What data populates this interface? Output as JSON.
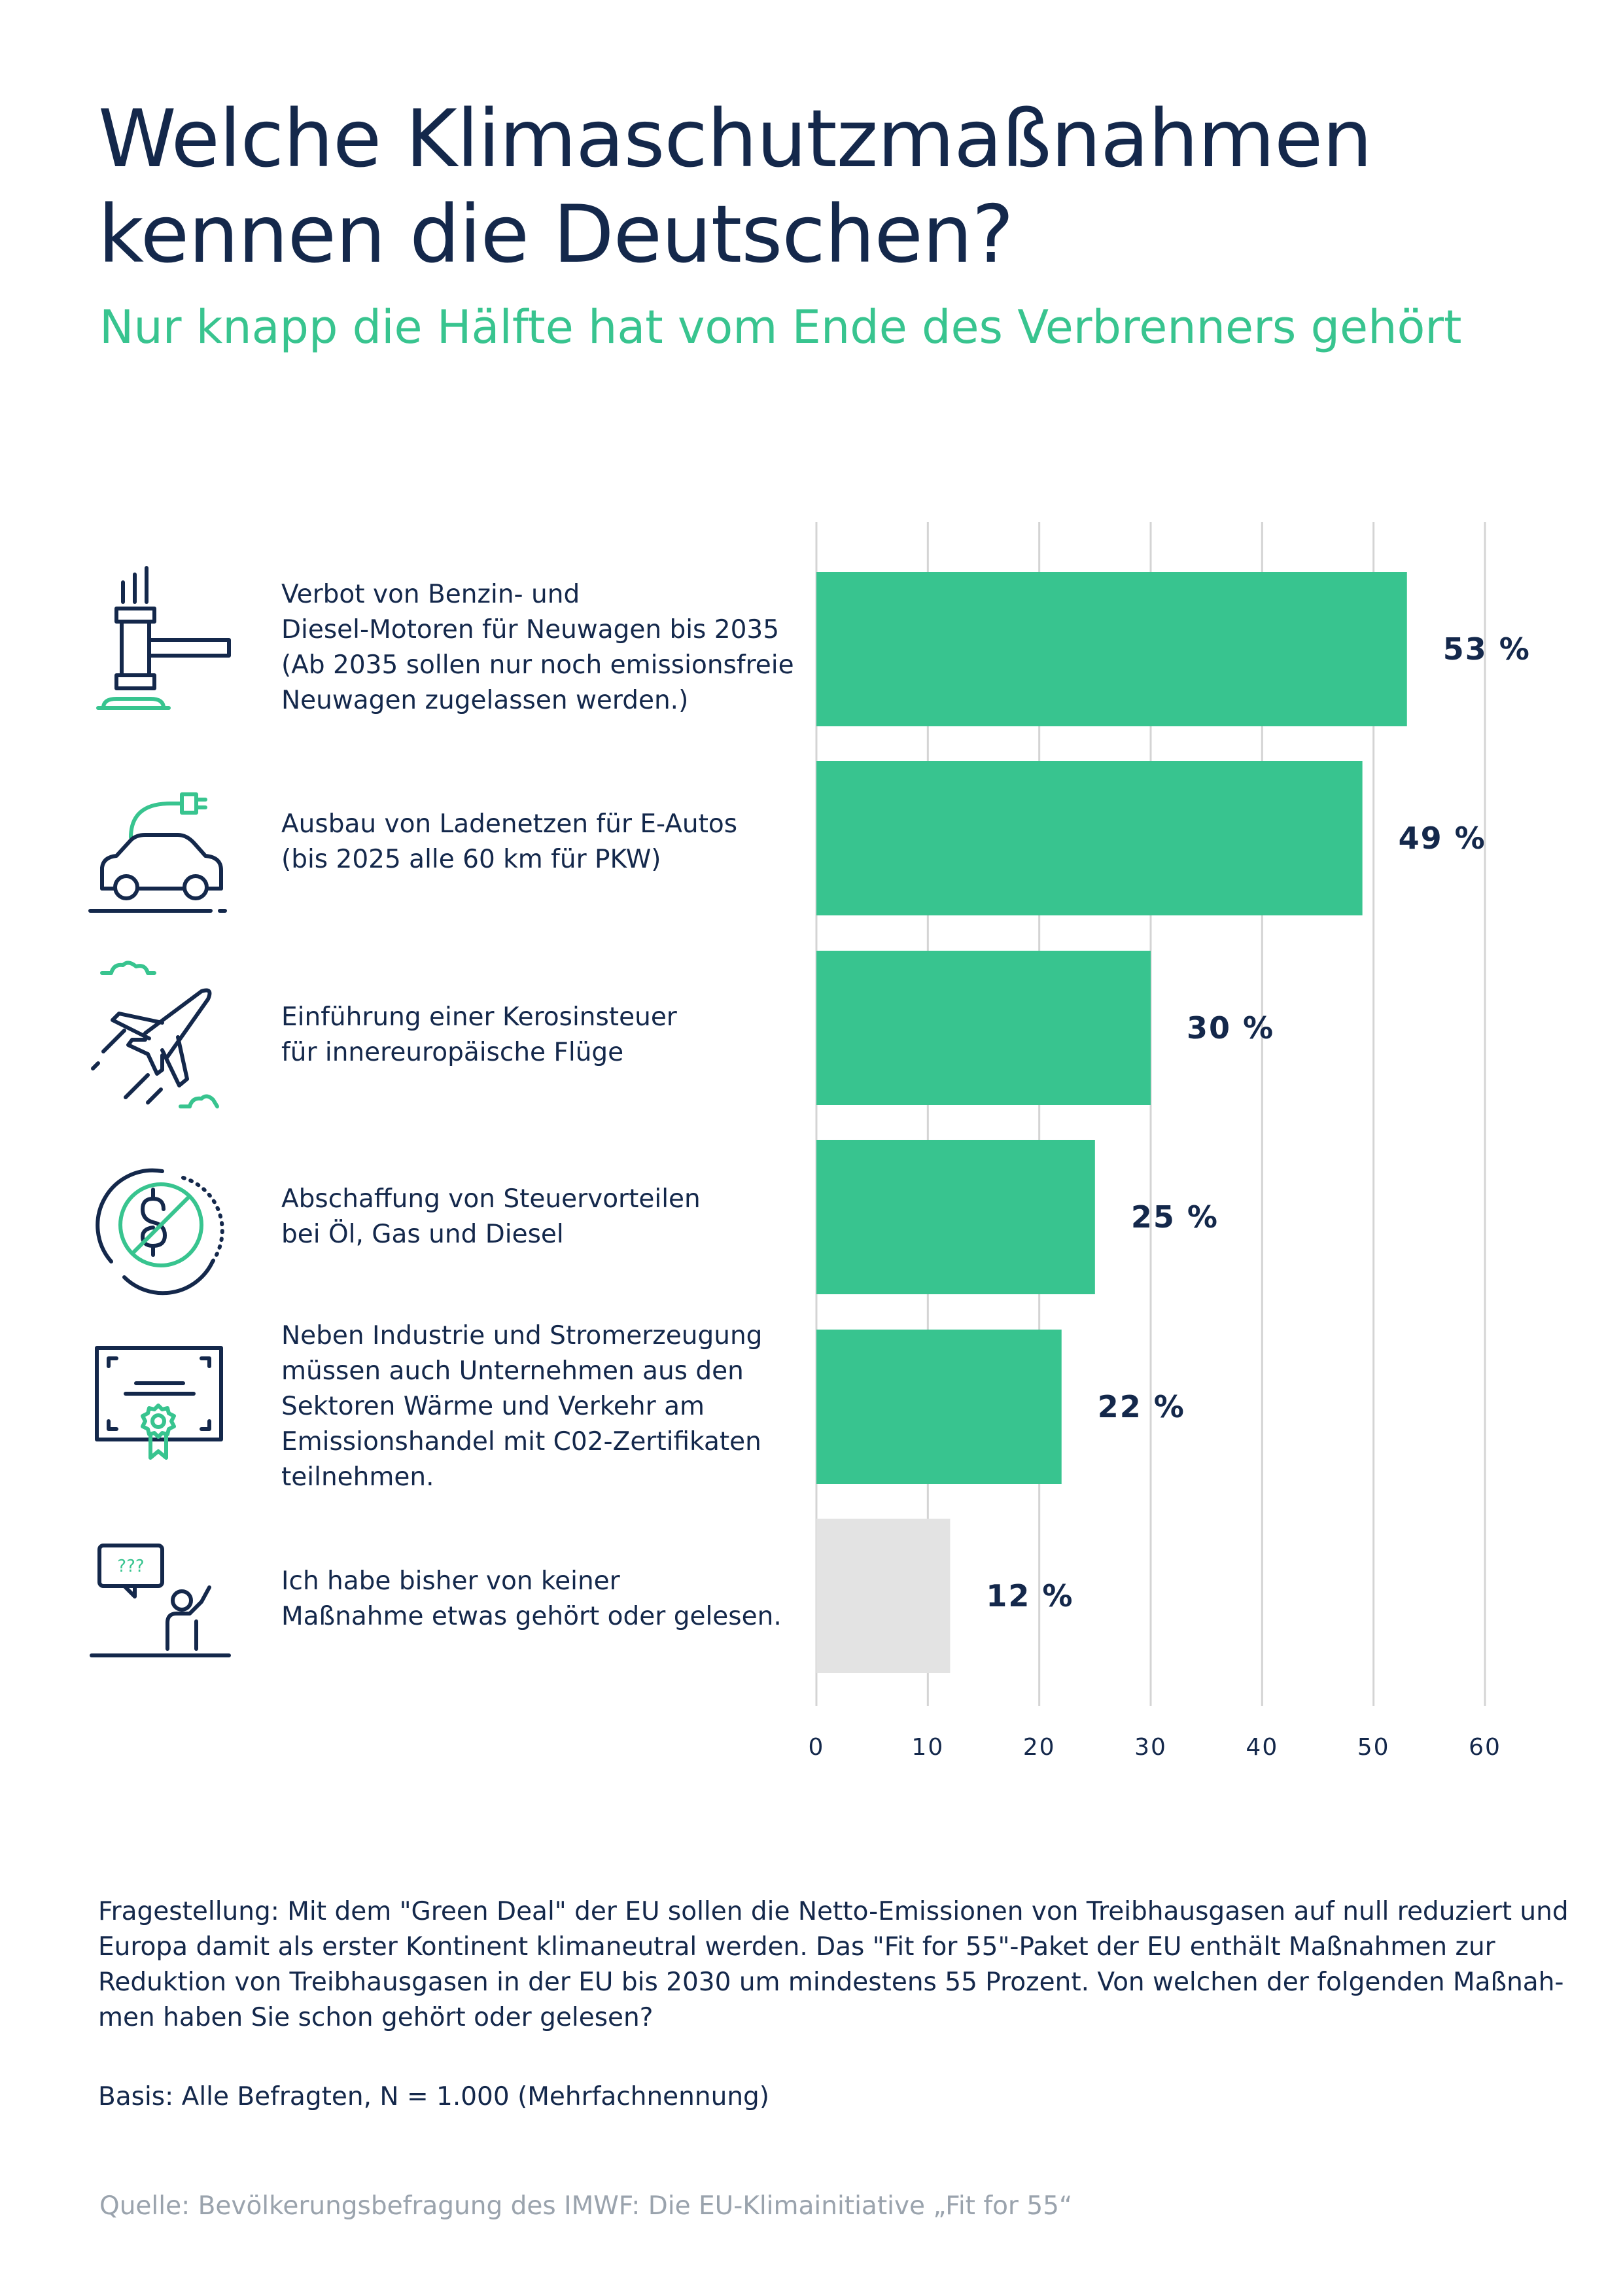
{
  "header": {
    "title_lines": [
      "Welche Klimaschutzmaßnahmen",
      "kennen die Deutschen?"
    ],
    "subtitle": "Nur knapp die Hälfte hat vom Ende des Verbrenners gehört"
  },
  "colors": {
    "accent": "#38c48f",
    "text": "#14284b",
    "neutral_bar": "#e3e3e3",
    "grid": "#d4d4d4",
    "source": "#9aa3ad"
  },
  "items": [
    {
      "icon": "gavel-icon",
      "label_lines": [
        "Verbot von Benzin- und",
        "Diesel-Motoren für Neuwagen bis 2035",
        "(Ab 2035 sollen nur noch emissionsfreie",
        "Neuwagen zugelassen werden.)"
      ]
    },
    {
      "icon": "ev-car-charging-icon",
      "label_lines": [
        "Ausbau von Ladenetzen für E-Autos",
        "(bis 2025 alle 60 km für PKW)"
      ]
    },
    {
      "icon": "airplane-icon",
      "label_lines": [
        "Einführung einer Kerosinsteuer",
        "für innereuropäische Flüge"
      ]
    },
    {
      "icon": "no-tax-benefit-icon",
      "label_lines": [
        "Abschaffung von Steuervorteilen",
        "bei Öl, Gas und Diesel"
      ]
    },
    {
      "icon": "certificate-icon",
      "label_lines": [
        "Neben Industrie und Stromerzeugung",
        "müssen auch Unternehmen aus den",
        "Sektoren Wärme und Verkehr am",
        "Emissionshandel mit C02-Zertifikaten",
        "teilnehmen."
      ]
    },
    {
      "icon": "question-person-icon",
      "label_lines": [
        "Ich habe bisher von keiner",
        "Maßnahme etwas gehört oder gelesen."
      ]
    }
  ],
  "chart_data": {
    "type": "bar",
    "orientation": "horizontal",
    "categories": [
      "Verbot von Benzin- und Diesel-Motoren für Neuwagen bis 2035 (Ab 2035 sollen nur noch emissionsfreie Neuwagen zugelassen werden.)",
      "Ausbau von Ladenetzen für E-Autos (bis 2025 alle 60 km für PKW)",
      "Einführung einer Kerosinsteuer für innereuropäische Flüge",
      "Abschaffung von Steuervorteilen bei Öl, Gas und Diesel",
      "Neben Industrie und Stromerzeugung müssen auch Unternehmen aus den Sektoren Wärme und Verkehr am Emissionshandel mit C02-Zertifikaten teilnehmen.",
      "Ich habe bisher von keiner Maßnahme etwas gehört oder gelesen."
    ],
    "values": [
      53,
      49,
      30,
      25,
      22,
      12
    ],
    "value_labels": [
      "53 %",
      "49 %",
      "30 %",
      "25 %",
      "22 %",
      "12 %"
    ],
    "bar_colors": [
      "#38c48f",
      "#38c48f",
      "#38c48f",
      "#38c48f",
      "#38c48f",
      "#e3e3e3"
    ],
    "xlim": [
      0,
      60
    ],
    "xticks": [
      0,
      10,
      20,
      30,
      40,
      50,
      60
    ],
    "grid": true
  },
  "footer": {
    "question_lines": [
      "Fragestellung:  Mit dem \"Green Deal\" der EU sollen die Netto-Emissionen von Treibhausgasen auf null reduziert und",
      "Europa damit als erster Kontinent klimaneutral werden. Das \"Fit for 55\"-Paket der EU enthält Maßnahmen zur",
      "Reduktion von Treibhausgasen in der EU bis 2030 um mindestens 55 Prozent. Von welchen der folgenden Maßnah-",
      "men haben Sie schon gehört oder gelesen?"
    ],
    "basis": "Basis: Alle Befragten, N = 1.000 (Mehrfachnennung)",
    "source": "Quelle: Bevölkerungsbefragung des IMWF: Die EU-Klimainitiative „Fit for 55“"
  }
}
